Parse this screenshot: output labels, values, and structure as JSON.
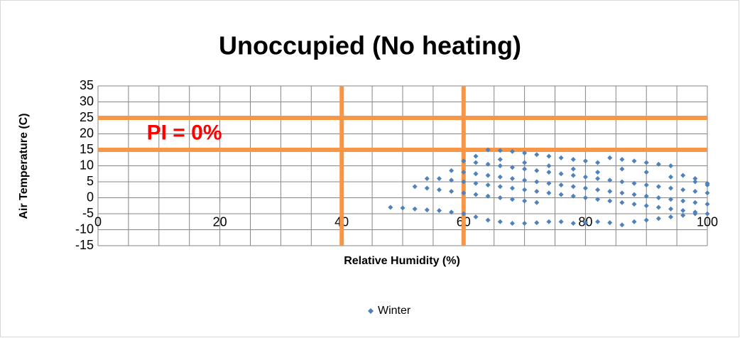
{
  "chart_data": {
    "type": "scatter",
    "title": "Unoccupied (No heating)",
    "xlabel": "Relative Humidity (%)",
    "ylabel": "Air Temperature (C)",
    "xlim": [
      0,
      100
    ],
    "ylim": [
      -15,
      35
    ],
    "xticks": [
      0,
      20,
      40,
      60,
      80,
      100
    ],
    "x_minor_gridlines": [
      0,
      5,
      10,
      15,
      20,
      25,
      30,
      35,
      40,
      45,
      50,
      55,
      60,
      65,
      70,
      75,
      80,
      85,
      90,
      95,
      100
    ],
    "yticks": [
      -15,
      -10,
      -5,
      0,
      5,
      10,
      15,
      20,
      25,
      30,
      35
    ],
    "grid": true,
    "legend": "bottom",
    "reference_lines": {
      "x": [
        40,
        60
      ],
      "y": [
        15,
        25
      ],
      "color": "#f79646"
    },
    "annotations": [
      {
        "text": "PI = 0%",
        "x": 8,
        "y": 20,
        "color": "#ff0000"
      }
    ],
    "series": [
      {
        "name": "Winter",
        "color": "#4f81bd",
        "x": [
          48,
          50,
          52,
          54,
          56,
          58,
          60,
          62,
          64,
          66,
          68,
          70,
          72,
          74,
          76,
          78,
          80,
          82,
          84,
          86,
          88,
          90,
          92,
          94,
          96,
          98,
          100,
          52,
          54,
          56,
          58,
          60,
          62,
          64,
          66,
          68,
          70,
          72,
          54,
          56,
          58,
          60,
          62,
          64,
          66,
          68,
          70,
          72,
          74,
          76,
          78,
          80,
          82,
          84,
          86,
          88,
          90,
          92,
          94,
          96,
          98,
          58,
          60,
          62,
          64,
          66,
          68,
          70,
          72,
          74,
          76,
          78,
          80,
          82,
          84,
          86,
          88,
          90,
          92,
          94,
          96,
          98,
          100,
          60,
          62,
          64,
          66,
          68,
          70,
          72,
          74,
          76,
          78,
          80,
          82,
          84,
          86,
          88,
          90,
          92,
          94,
          96,
          98,
          100,
          64,
          66,
          68,
          70,
          72,
          74,
          76,
          78,
          80,
          82,
          84,
          86,
          88,
          90,
          92,
          94,
          96,
          98,
          100,
          62,
          66,
          70,
          74,
          78,
          82,
          86,
          90,
          94,
          98,
          100
        ],
        "y": [
          -3,
          -3.2,
          -3.5,
          -3.8,
          -4,
          -4.5,
          -5,
          -6,
          -7,
          -7.5,
          -8,
          -8,
          -7.8,
          -7.5,
          -7.5,
          -8,
          -7.8,
          -7.5,
          -7.8,
          -8.5,
          -7.5,
          -7,
          -6.5,
          -6,
          -5.5,
          -5,
          -5,
          3.5,
          3,
          2.5,
          2,
          1.5,
          1,
          0.5,
          0,
          -0.5,
          -1,
          -1.5,
          6,
          6,
          5.5,
          5,
          4.5,
          4,
          3.5,
          3,
          2.5,
          2,
          1.5,
          1,
          0.5,
          0,
          -0.5,
          -1,
          -1.5,
          -2,
          -2.5,
          -3,
          -3.5,
          -4,
          -4.5,
          8.5,
          8,
          7.5,
          7,
          6.5,
          6,
          5.5,
          5,
          4.5,
          4,
          3.5,
          3,
          2.5,
          2,
          1.5,
          1,
          0.5,
          0,
          -0.5,
          -1,
          -1.5,
          -2,
          11.5,
          11,
          10.5,
          10,
          9.5,
          9,
          8.5,
          8,
          7.5,
          7,
          6.5,
          6,
          5.5,
          5,
          4.5,
          4,
          3.5,
          3,
          2.5,
          2,
          1.5,
          15,
          14.8,
          14.5,
          14,
          13.5,
          13,
          12.5,
          12,
          11.5,
          11,
          12.5,
          12,
          11.5,
          11,
          10.5,
          10,
          7,
          6,
          4.5,
          13,
          12,
          11,
          10,
          9,
          8,
          9,
          8,
          6.5,
          5,
          4
        ]
      }
    ]
  }
}
